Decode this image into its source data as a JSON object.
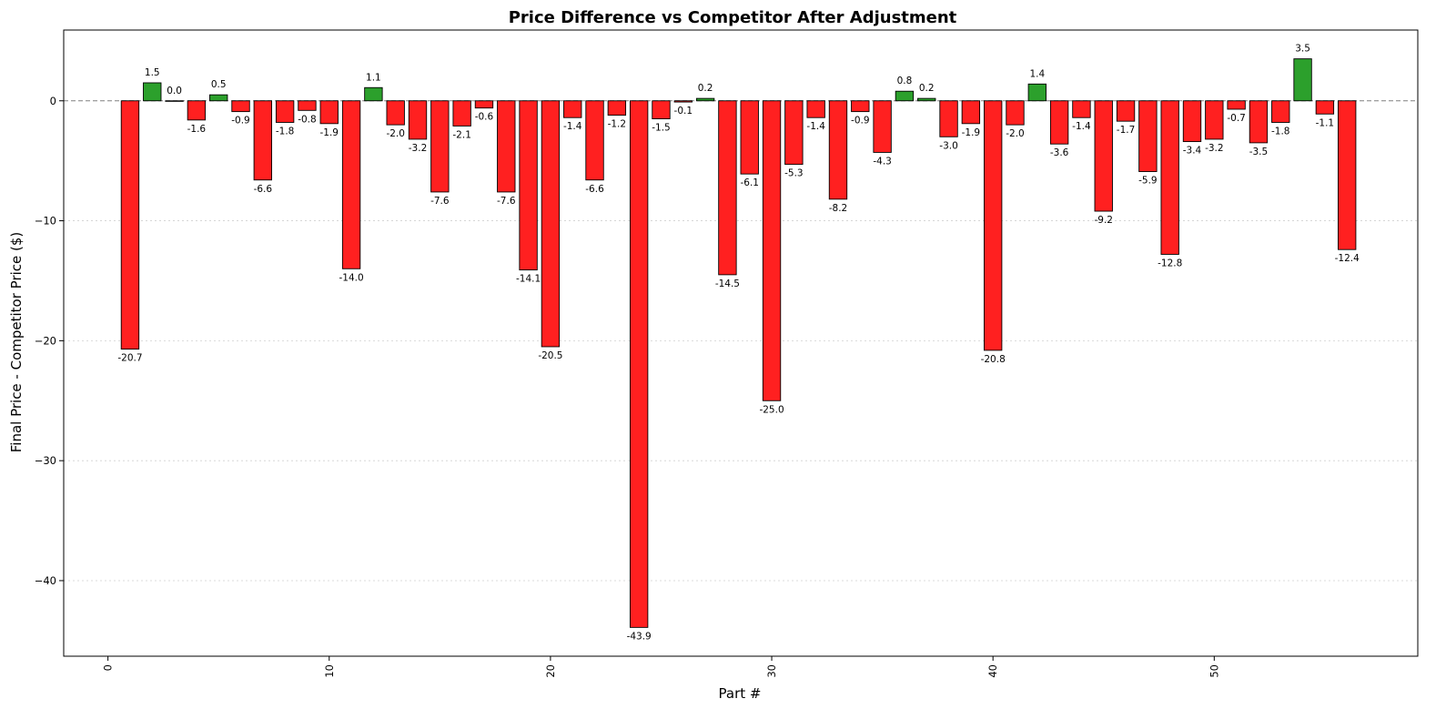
{
  "chart_data": {
    "type": "bar",
    "title": "Price Difference vs Competitor After Adjustment",
    "xlabel": "Part #",
    "ylabel": "Final Price - Competitor Price ($)",
    "xlim": [
      -2,
      59.2
    ],
    "ylim": [
      -46.3,
      5.9
    ],
    "xticks": [
      0,
      10,
      20,
      30,
      40,
      50
    ],
    "xtick_labels": [
      "0",
      "10",
      "20",
      "30",
      "40",
      "50"
    ],
    "yticks": [
      -40,
      -30,
      -20,
      -10,
      0
    ],
    "ytick_labels": [
      "−40",
      "−30",
      "−20",
      "−10",
      "0"
    ],
    "grid": {
      "y": true,
      "x": false
    },
    "reference_line": 0,
    "colors": {
      "positive": "#2ca02c",
      "negative": "#ff2020",
      "edge": "#000000",
      "grid": "#d0d0d0",
      "zero_line": "#808080"
    },
    "x": [
      1,
      2,
      3,
      4,
      5,
      6,
      7,
      8,
      9,
      10,
      11,
      12,
      13,
      14,
      15,
      16,
      17,
      18,
      19,
      20,
      21,
      22,
      23,
      24,
      25,
      26,
      27,
      28,
      29,
      30,
      31,
      32,
      33,
      34,
      35,
      36,
      37,
      38,
      39,
      40,
      41,
      42,
      43,
      44,
      45,
      46,
      47,
      48,
      49,
      50,
      51,
      52,
      53,
      54,
      55,
      56
    ],
    "values": [
      -20.7,
      1.5,
      0.0,
      -1.6,
      0.5,
      -0.9,
      -6.6,
      -1.8,
      -0.8,
      -1.9,
      -14.0,
      1.1,
      -2.0,
      -3.2,
      -7.6,
      -2.1,
      -0.6,
      -7.6,
      -14.1,
      -20.5,
      -1.4,
      -6.6,
      -1.2,
      -43.9,
      -1.5,
      -0.1,
      0.2,
      -14.5,
      -6.1,
      -25.0,
      -5.3,
      -1.4,
      -8.2,
      -0.9,
      -4.3,
      0.8,
      0.2,
      -3.0,
      -1.9,
      -20.8,
      -2.0,
      1.4,
      -3.6,
      -1.4,
      -9.2,
      -1.7,
      -5.9,
      -12.8,
      -3.4,
      -3.2,
      -0.7,
      -3.5,
      -1.8,
      3.5,
      -1.1,
      -12.4
    ],
    "labels": [
      "-20.7",
      "1.5",
      "0.0",
      "-1.6",
      "0.5",
      "-0.9",
      "-6.6",
      "-1.8",
      "-0.8",
      "-1.9",
      "-14.0",
      "1.1",
      "-2.0",
      "-3.2",
      "-7.6",
      "-2.1",
      "-0.6",
      "-7.6",
      "-14.1",
      "-20.5",
      "-1.4",
      "-6.6",
      "-1.2",
      "-43.9",
      "-1.5",
      "-0.1",
      "0.2",
      "-14.5",
      "-6.1",
      "-25.0",
      "-5.3",
      "-1.4",
      "-8.2",
      "-0.9",
      "-4.3",
      "0.8",
      "0.2",
      "-3.0",
      "-1.9",
      "-20.8",
      "-2.0",
      "1.4",
      "-3.6",
      "-1.4",
      "-9.2",
      "-1.7",
      "-5.9",
      "-12.8",
      "-3.4",
      "-3.2",
      "-0.7",
      "-3.5",
      "-1.8",
      "3.5",
      "-1.1",
      "-12.4"
    ]
  }
}
